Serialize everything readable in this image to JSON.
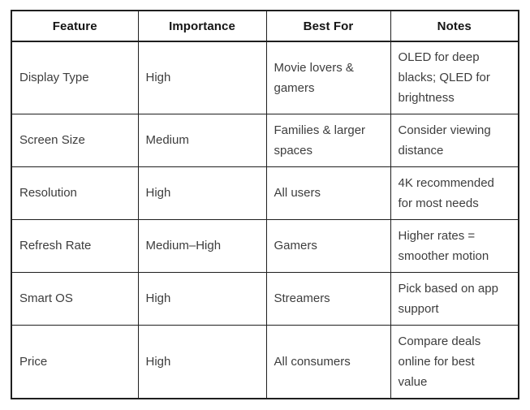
{
  "page": {
    "background_color": "#ffffff"
  },
  "table": {
    "border_color": "#1f1f1f",
    "header_text_color": "#141414",
    "body_text_color": "#3d3d3d",
    "headers": [
      "Feature",
      "Importance",
      "Best For",
      "Notes"
    ],
    "rows": [
      {
        "feature": "Display Type",
        "importance": "High",
        "best_for": "Movie lovers & gamers",
        "notes": "OLED for deep blacks; QLED for brightness"
      },
      {
        "feature": "Screen Size",
        "importance": "Medium",
        "best_for": "Families & larger spaces",
        "notes": "Consider viewing distance"
      },
      {
        "feature": "Resolution",
        "importance": "High",
        "best_for": "All users",
        "notes": "4K recommended for most needs"
      },
      {
        "feature": "Refresh Rate",
        "importance": "Medium–High",
        "best_for": "Gamers",
        "notes": "Higher rates = smoother motion"
      },
      {
        "feature": "Smart OS",
        "importance": "High",
        "best_for": "Streamers",
        "notes": "Pick based on app support"
      },
      {
        "feature": "Price",
        "importance": "High",
        "best_for": "All consumers",
        "notes": "Compare deals online for best value"
      }
    ]
  }
}
